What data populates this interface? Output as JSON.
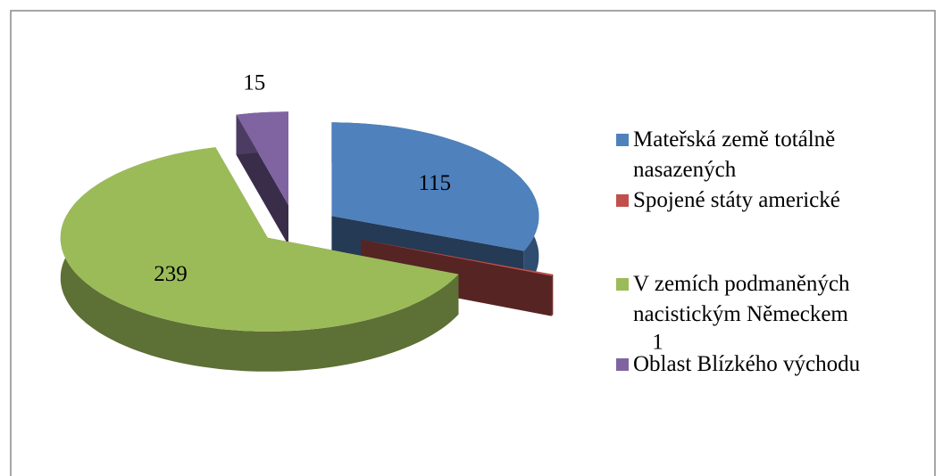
{
  "chart_data": {
    "type": "pie3d",
    "categories": [
      "Mateřská země totálně nasazených",
      "Spojené státy americké",
      "V zemích podmaněných nacistickým Německem",
      "Oblast Blízkého východu"
    ],
    "values": [
      115,
      1,
      239,
      15
    ],
    "colors": [
      "#4f81bd",
      "#c0504d",
      "#9bbb59",
      "#8064a2"
    ],
    "legend": "right"
  }
}
